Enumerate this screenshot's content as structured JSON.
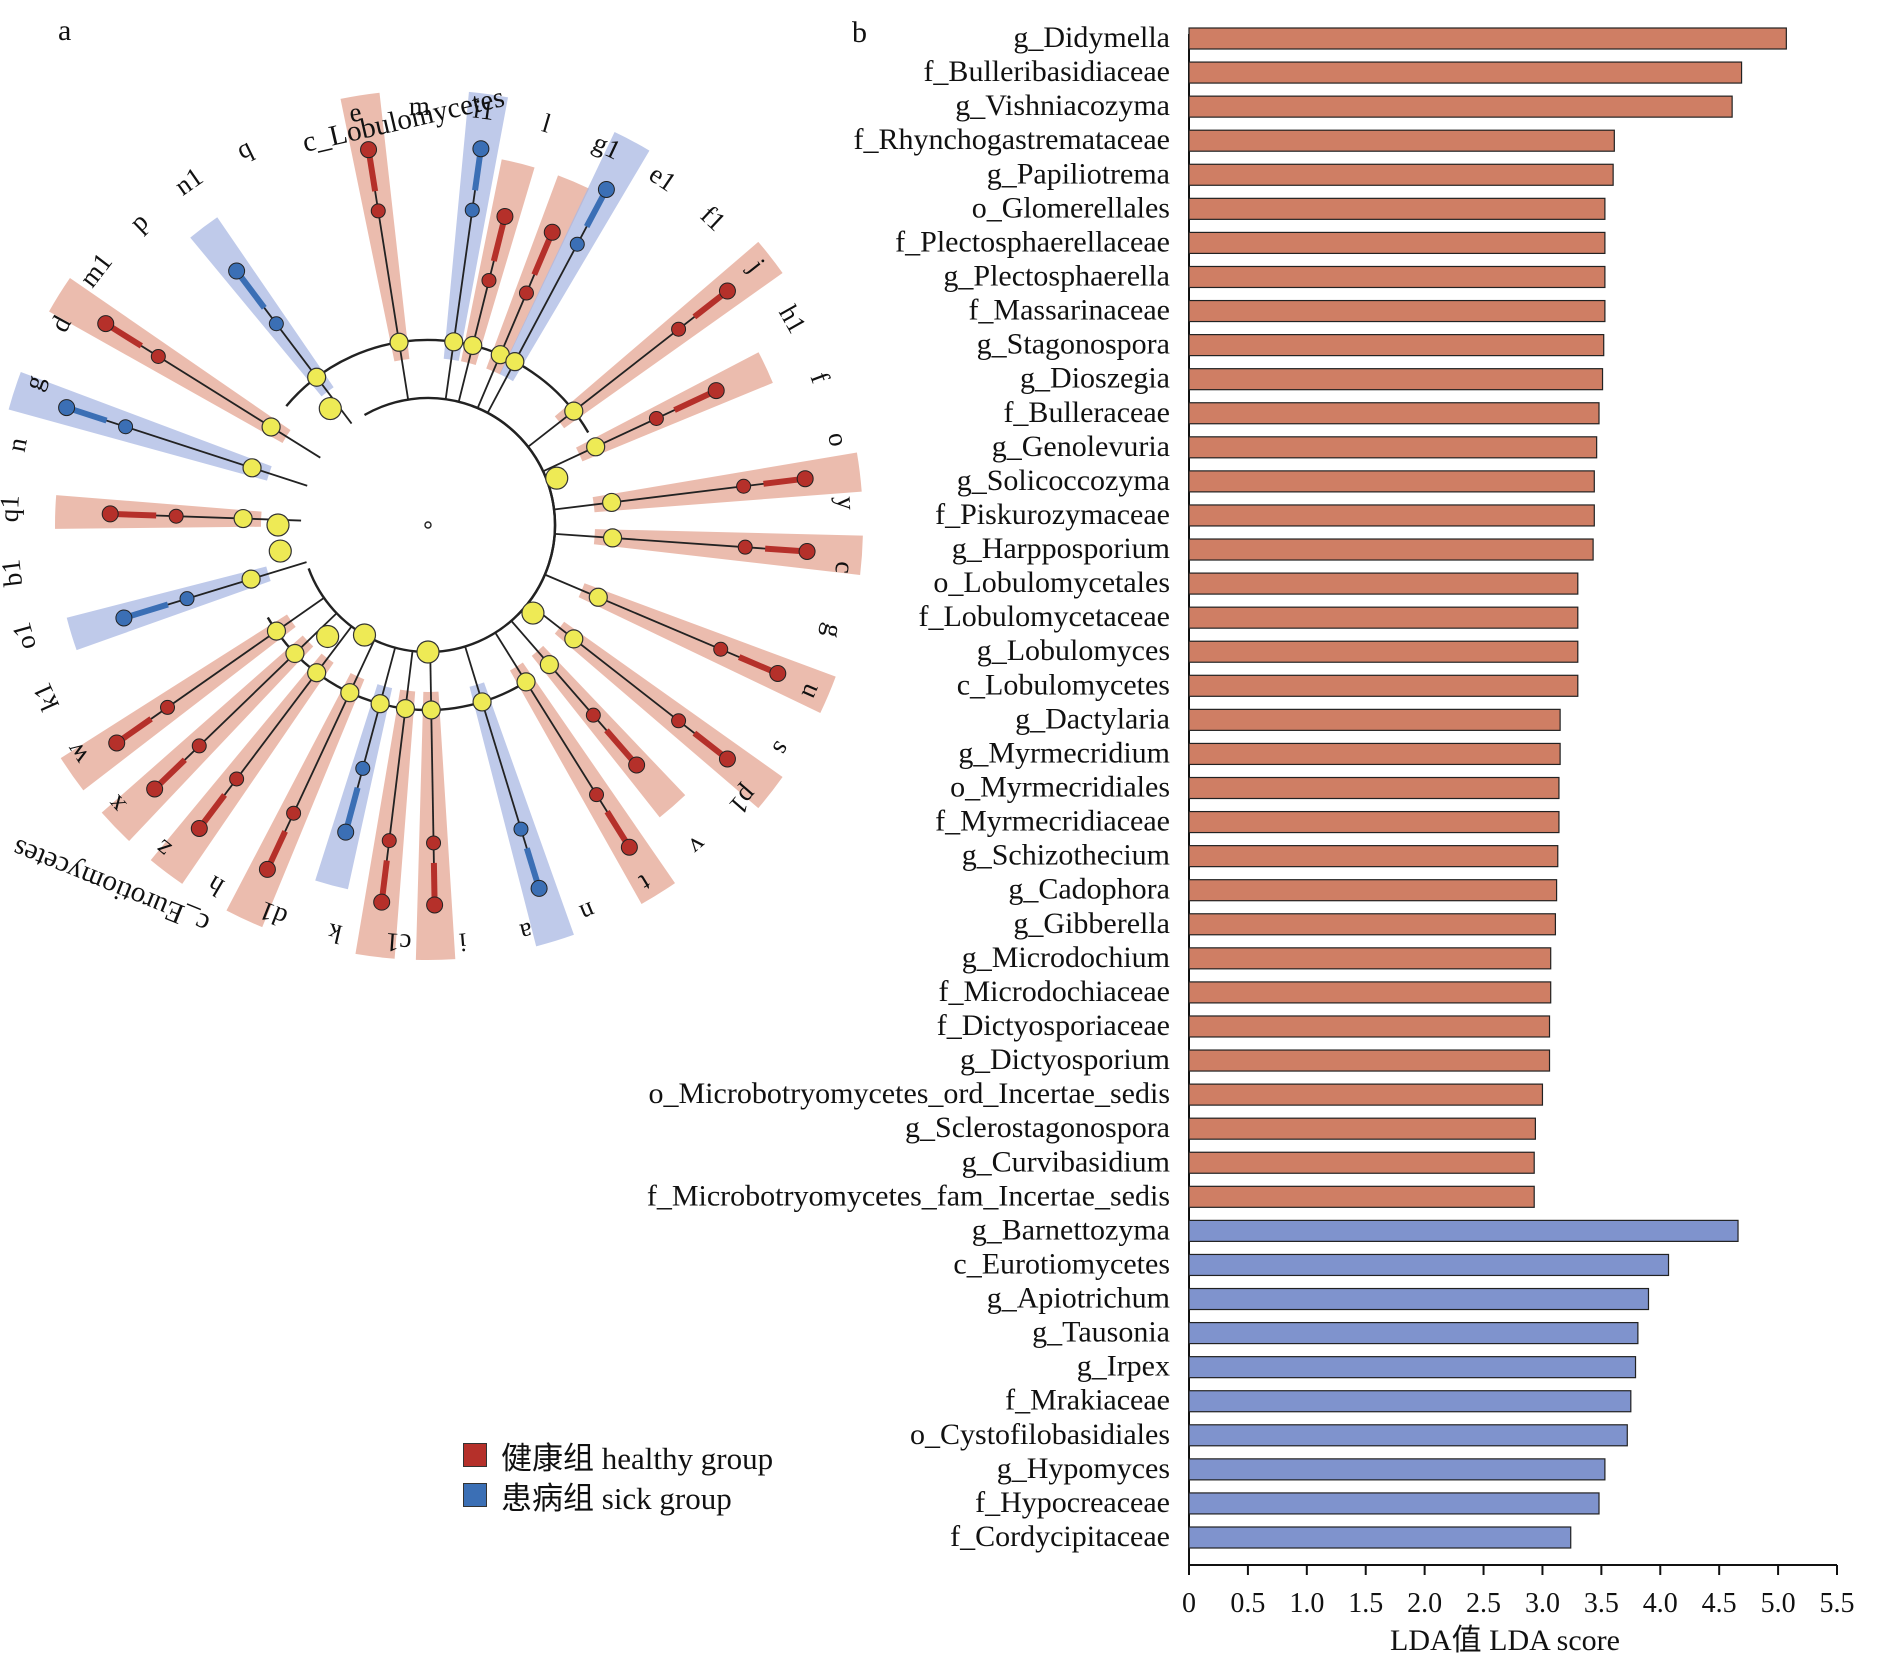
{
  "panels": {
    "a": "a",
    "b": "b"
  },
  "colors": {
    "healthy": "#b5302a",
    "sick": "#3b6fb5",
    "healthy_bar": "#cf7e64",
    "sick_bar": "#7f93cd",
    "node": "#eeea55",
    "healthy_shade": "#e4a593",
    "sick_shade": "#a9b8e3"
  },
  "legend": {
    "items": [
      {
        "label": "健康组 healthy group",
        "group": "healthy"
      },
      {
        "label": "患病组 sick group",
        "group": "sick"
      }
    ]
  },
  "cladogram": {
    "class_labels": [
      "c_Lobulomycetes",
      "c_Eurotiomycetes"
    ],
    "letters": [
      "e",
      "m",
      "i1",
      "l",
      "g1",
      "e1",
      "f1",
      "j",
      "h1",
      "f",
      "o",
      "y",
      "c",
      "g",
      "u",
      "s",
      "p1",
      "v",
      "t",
      "n",
      "a",
      "i",
      "c1",
      "k",
      "d1",
      "h",
      "z",
      "x",
      "w",
      "k1",
      "o1",
      "b1",
      "q1",
      "n",
      "g",
      "d",
      "m1",
      "p",
      "n1",
      "q"
    ]
  },
  "chart_data": {
    "type": "bar",
    "orientation": "horizontal",
    "categories": [
      "g_Didymella",
      "f_Bulleribasidiaceae",
      "g_Vishniacozyma",
      "f_Rhynchogastremataceae",
      "g_Papiliotrema",
      "o_Glomerellales",
      "f_Plectosphaerellaceae",
      "g_Plectosphaerella",
      "f_Massarinaceae",
      "g_Stagonospora",
      "g_Dioszegia",
      "f_Bulleraceae",
      "g_Genolevuria",
      "g_Solicoccozyma",
      "f_Piskurozymaceae",
      "g_Harpposporium",
      "o_Lobulomycetales",
      "f_Lobulomycetaceae",
      "g_Lobulomyces",
      "c_Lobulomycetes",
      "g_Dactylaria",
      "g_Myrmecridium",
      "o_Myrmecridiales",
      "f_Myrmecridiaceae",
      "g_Schizothecium",
      "g_Cadophora",
      "g_Gibberella",
      "g_Microdochium",
      "f_Microdochiaceae",
      "f_Dictyosporiaceae",
      "g_Dictyosporium",
      "o_Microbotryomycetes_ord_Incertae_sedis",
      "g_Sclerostagonospora",
      "g_Curvibasidium",
      "f_Microbotryomycetes_fam_Incertae_sedis",
      "g_Barnettozyma",
      "c_Eurotiomycetes",
      "g_Apiotrichum",
      "g_Tausonia",
      "g_Irpex",
      "f_Mrakiaceae",
      "o_Cystofilobasidiales",
      "g_Hypomyces",
      "f_Hypocreaceae",
      "f_Cordycipitaceae"
    ],
    "values": [
      5.07,
      4.69,
      4.61,
      3.61,
      3.6,
      3.53,
      3.53,
      3.53,
      3.53,
      3.52,
      3.51,
      3.48,
      3.46,
      3.44,
      3.44,
      3.43,
      3.3,
      3.3,
      3.3,
      3.3,
      3.15,
      3.15,
      3.14,
      3.14,
      3.13,
      3.12,
      3.11,
      3.07,
      3.07,
      3.06,
      3.06,
      3.0,
      2.94,
      2.93,
      2.93,
      4.66,
      4.07,
      3.9,
      3.81,
      3.79,
      3.75,
      3.72,
      3.53,
      3.48,
      3.24
    ],
    "groups": [
      "healthy",
      "healthy",
      "healthy",
      "healthy",
      "healthy",
      "healthy",
      "healthy",
      "healthy",
      "healthy",
      "healthy",
      "healthy",
      "healthy",
      "healthy",
      "healthy",
      "healthy",
      "healthy",
      "healthy",
      "healthy",
      "healthy",
      "healthy",
      "healthy",
      "healthy",
      "healthy",
      "healthy",
      "healthy",
      "healthy",
      "healthy",
      "healthy",
      "healthy",
      "healthy",
      "healthy",
      "healthy",
      "healthy",
      "healthy",
      "healthy",
      "sick",
      "sick",
      "sick",
      "sick",
      "sick",
      "sick",
      "sick",
      "sick",
      "sick",
      "sick"
    ],
    "xlim": [
      0,
      5.5
    ],
    "xticks": [
      "0",
      "0.5",
      "1.0",
      "1.5",
      "2.0",
      "2.5",
      "3.0",
      "3.5",
      "4.0",
      "4.5",
      "5.0",
      "5.5"
    ],
    "xlabel": "LDA值 LDA score"
  }
}
